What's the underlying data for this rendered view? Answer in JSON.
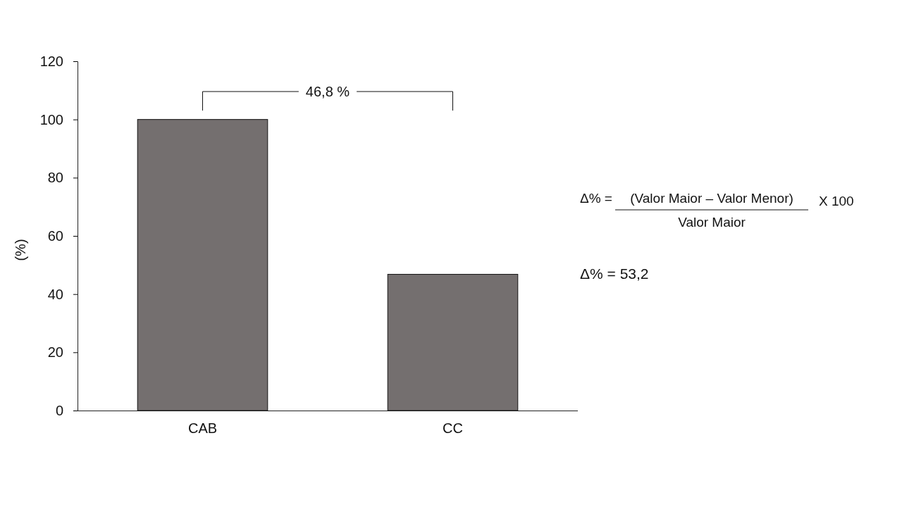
{
  "chart_data": {
    "type": "bar",
    "ylabel": "(%)",
    "categories": [
      "CAB",
      "CC"
    ],
    "values": [
      100,
      46.8
    ],
    "color": "#746f6f",
    "ylim": [
      0,
      120
    ],
    "yticks": [
      0,
      20,
      40,
      60,
      80,
      100,
      120
    ],
    "grid": false,
    "annotations": [
      "46,8 %",
      "Δ% =",
      "(Valor Maior – Valor Menor)",
      "Valor Maior",
      "X 100",
      "Δ% = 53,2"
    ]
  }
}
